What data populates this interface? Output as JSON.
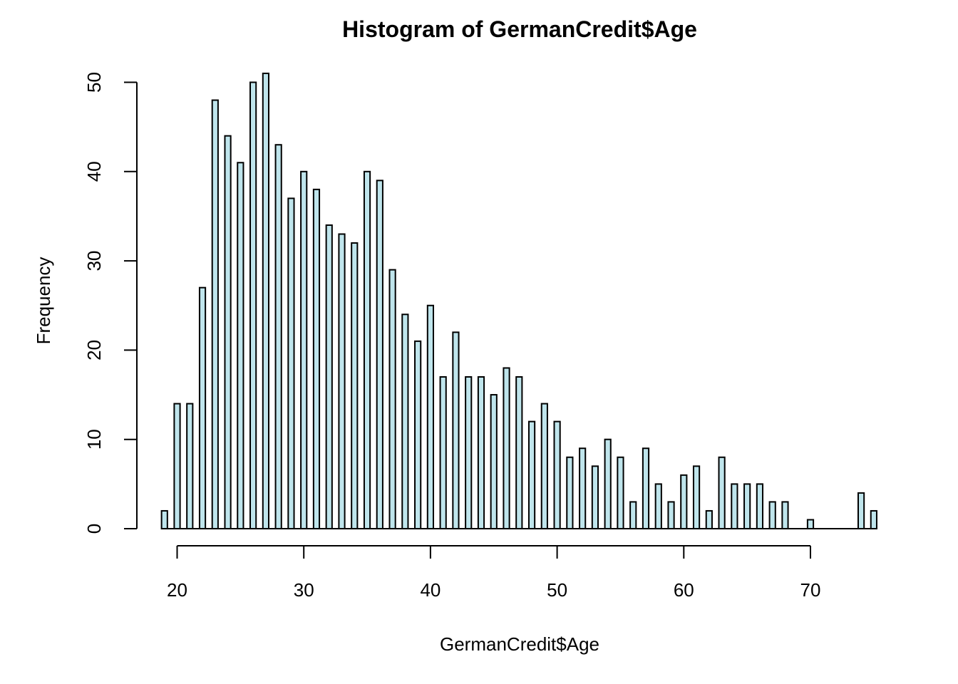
{
  "chart_data": {
    "type": "bar",
    "title": "Histogram of GermanCredit$Age",
    "xlabel": "GermanCredit$Age",
    "ylabel": "Frequency",
    "bar_color": "#bfe5ec",
    "edge_color": "#000000",
    "xlim": [
      19,
      75
    ],
    "ylim": [
      0,
      51
    ],
    "x_ticks": [
      20,
      30,
      40,
      50,
      60,
      70
    ],
    "y_ticks": [
      0,
      10,
      20,
      30,
      40,
      50
    ],
    "x": [
      19,
      20,
      21,
      22,
      23,
      24,
      25,
      26,
      27,
      28,
      29,
      30,
      31,
      32,
      33,
      34,
      35,
      36,
      37,
      38,
      39,
      40,
      41,
      42,
      43,
      44,
      45,
      46,
      47,
      48,
      49,
      50,
      51,
      52,
      53,
      54,
      55,
      56,
      57,
      58,
      59,
      60,
      61,
      62,
      63,
      64,
      65,
      66,
      67,
      68,
      69,
      70,
      71,
      72,
      73,
      74,
      75
    ],
    "values": [
      2,
      14,
      14,
      27,
      48,
      44,
      41,
      50,
      51,
      43,
      37,
      40,
      38,
      34,
      33,
      32,
      40,
      39,
      29,
      24,
      21,
      25,
      17,
      22,
      17,
      17,
      15,
      18,
      17,
      12,
      14,
      12,
      8,
      9,
      7,
      10,
      8,
      3,
      9,
      5,
      3,
      6,
      7,
      2,
      8,
      5,
      5,
      5,
      3,
      3,
      0,
      1,
      0,
      0,
      0,
      4,
      2
    ]
  }
}
